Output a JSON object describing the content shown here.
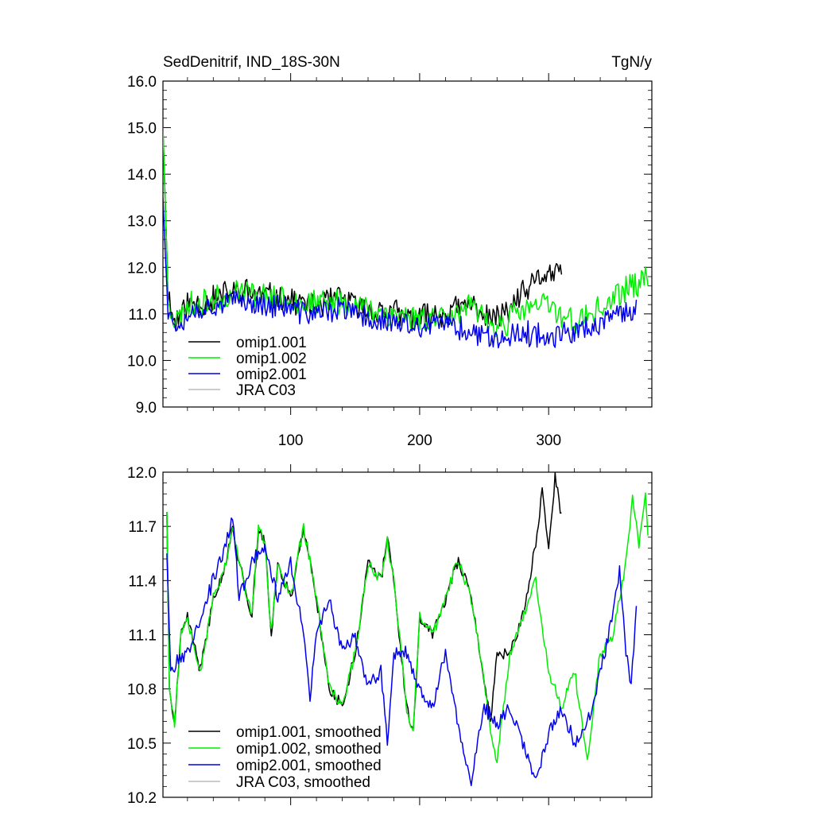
{
  "chart_data": [
    {
      "type": "line",
      "title": "SedDenitrif, IND_18S-30N",
      "units": "TgN/y",
      "xlim": [
        1,
        380
      ],
      "ylim": [
        9.0,
        16.0
      ],
      "xticks": [
        100,
        200,
        300
      ],
      "xtick_labels": [
        "100",
        "200",
        "300"
      ],
      "yticks": [
        9,
        10,
        11,
        12,
        13,
        14,
        15,
        16
      ],
      "ytick_labels": [
        "9.0",
        "10.0",
        "11.0",
        "12.0",
        "13.0",
        "14.0",
        "15.0",
        "16.0"
      ],
      "legend_position": "bottom-left",
      "series": [
        {
          "name": "omip1.001",
          "color": "#000000",
          "x_start": 1,
          "x_end": 310,
          "anchors": [
            [
              1,
              15.0
            ],
            [
              3,
              13.2
            ],
            [
              5,
              11.4
            ],
            [
              10,
              10.8
            ],
            [
              20,
              11.2
            ],
            [
              40,
              11.3
            ],
            [
              60,
              11.5
            ],
            [
              80,
              11.4
            ],
            [
              100,
              11.3
            ],
            [
              120,
              11.2
            ],
            [
              140,
              11.3
            ],
            [
              160,
              11.1
            ],
            [
              180,
              11.0
            ],
            [
              200,
              10.9
            ],
            [
              220,
              11.0
            ],
            [
              240,
              11.2
            ],
            [
              250,
              11.0
            ],
            [
              260,
              10.9
            ],
            [
              270,
              11.1
            ],
            [
              280,
              11.4
            ],
            [
              290,
              11.7
            ],
            [
              300,
              11.9
            ],
            [
              310,
              11.8
            ]
          ],
          "noise": 0.45,
          "seed": 11
        },
        {
          "name": "omip1.002",
          "color": "#00ee00",
          "x_start": 1,
          "x_end": 377,
          "anchors": [
            [
              1,
              15.0
            ],
            [
              3,
              13.2
            ],
            [
              5,
              11.4
            ],
            [
              10,
              10.8
            ],
            [
              20,
              11.2
            ],
            [
              40,
              11.3
            ],
            [
              60,
              11.5
            ],
            [
              80,
              11.4
            ],
            [
              100,
              11.3
            ],
            [
              120,
              11.2
            ],
            [
              140,
              11.3
            ],
            [
              160,
              11.1
            ],
            [
              180,
              11.0
            ],
            [
              200,
              10.9
            ],
            [
              220,
              11.0
            ],
            [
              240,
              11.1
            ],
            [
              260,
              10.7
            ],
            [
              280,
              11.1
            ],
            [
              300,
              11.2
            ],
            [
              320,
              10.8
            ],
            [
              340,
              11.1
            ],
            [
              360,
              11.5
            ],
            [
              377,
              11.8
            ]
          ],
          "noise": 0.45,
          "seed": 23
        },
        {
          "name": "omip2.001",
          "color": "#0000ee",
          "x_start": 1,
          "x_end": 368,
          "anchors": [
            [
              1,
              13.5
            ],
            [
              3,
              12.2
            ],
            [
              5,
              11.0
            ],
            [
              10,
              10.8
            ],
            [
              20,
              11.0
            ],
            [
              40,
              11.2
            ],
            [
              60,
              11.3
            ],
            [
              80,
              11.2
            ],
            [
              100,
              11.1
            ],
            [
              120,
              11.0
            ],
            [
              140,
              11.1
            ],
            [
              160,
              10.9
            ],
            [
              180,
              10.8
            ],
            [
              200,
              10.7
            ],
            [
              220,
              10.8
            ],
            [
              240,
              10.6
            ],
            [
              260,
              10.5
            ],
            [
              280,
              10.6
            ],
            [
              300,
              10.5
            ],
            [
              320,
              10.6
            ],
            [
              340,
              10.8
            ],
            [
              368,
              11.1
            ]
          ],
          "noise": 0.4,
          "seed": 37
        },
        {
          "name": "JRA C03",
          "color": "#bbbbbb",
          "x_start": null,
          "x_end": null,
          "anchors": [],
          "noise": 0,
          "seed": 0
        }
      ]
    },
    {
      "type": "line",
      "title": "",
      "units": "",
      "xlim": [
        1,
        380
      ],
      "ylim": [
        10.2,
        12.0
      ],
      "xticks": [
        100,
        200,
        300
      ],
      "xtick_labels": [
        "",
        "",
        ""
      ],
      "yticks": [
        10.2,
        10.5,
        10.8,
        11.1,
        11.4,
        11.7,
        12.0
      ],
      "ytick_labels": [
        "10.2",
        "10.5",
        "10.8",
        "11.1",
        "11.4",
        "11.7",
        "12.0"
      ],
      "legend_position": "bottom-left",
      "series": [
        {
          "name": "omip1.001, smoothed",
          "color": "#000000",
          "x_start": 4,
          "x_end": 310,
          "anchors": [
            [
              4,
              11.78
            ],
            [
              6,
              10.8
            ],
            [
              10,
              10.6
            ],
            [
              15,
              11.1
            ],
            [
              20,
              11.2
            ],
            [
              30,
              10.9
            ],
            [
              40,
              11.3
            ],
            [
              50,
              11.5
            ],
            [
              55,
              11.7
            ],
            [
              60,
              11.5
            ],
            [
              70,
              11.2
            ],
            [
              75,
              11.7
            ],
            [
              80,
              11.6
            ],
            [
              85,
              11.1
            ],
            [
              90,
              11.5
            ],
            [
              100,
              11.3
            ],
            [
              110,
              11.7
            ],
            [
              120,
              11.3
            ],
            [
              130,
              10.8
            ],
            [
              140,
              10.7
            ],
            [
              150,
              11.0
            ],
            [
              160,
              11.5
            ],
            [
              170,
              11.4
            ],
            [
              175,
              11.63
            ],
            [
              180,
              11.4
            ],
            [
              190,
              10.7
            ],
            [
              195,
              10.55
            ],
            [
              200,
              11.2
            ],
            [
              210,
              11.1
            ],
            [
              220,
              11.3
            ],
            [
              230,
              11.52
            ],
            [
              240,
              11.3
            ],
            [
              250,
              10.85
            ],
            [
              255,
              10.6
            ],
            [
              260,
              11.0
            ],
            [
              270,
              11.0
            ],
            [
              280,
              11.2
            ],
            [
              290,
              11.6
            ],
            [
              295,
              11.9
            ],
            [
              300,
              11.55
            ],
            [
              305,
              11.98
            ],
            [
              310,
              11.75
            ]
          ],
          "noise": 0.05,
          "seed": 41
        },
        {
          "name": "omip1.002, smoothed",
          "color": "#00ee00",
          "x_start": 4,
          "x_end": 377,
          "anchors": [
            [
              4,
              11.78
            ],
            [
              6,
              10.8
            ],
            [
              10,
              10.6
            ],
            [
              15,
              11.1
            ],
            [
              20,
              11.2
            ],
            [
              30,
              10.9
            ],
            [
              40,
              11.3
            ],
            [
              50,
              11.5
            ],
            [
              55,
              11.7
            ],
            [
              60,
              11.5
            ],
            [
              70,
              11.2
            ],
            [
              75,
              11.7
            ],
            [
              80,
              11.6
            ],
            [
              85,
              11.1
            ],
            [
              90,
              11.5
            ],
            [
              100,
              11.3
            ],
            [
              110,
              11.7
            ],
            [
              120,
              11.3
            ],
            [
              130,
              10.8
            ],
            [
              140,
              10.7
            ],
            [
              150,
              11.0
            ],
            [
              160,
              11.5
            ],
            [
              170,
              11.4
            ],
            [
              175,
              11.63
            ],
            [
              180,
              11.4
            ],
            [
              190,
              10.7
            ],
            [
              195,
              10.55
            ],
            [
              200,
              11.2
            ],
            [
              210,
              11.1
            ],
            [
              220,
              11.3
            ],
            [
              230,
              11.52
            ],
            [
              240,
              11.3
            ],
            [
              250,
              10.85
            ],
            [
              255,
              10.55
            ],
            [
              260,
              10.4
            ],
            [
              270,
              11.0
            ],
            [
              280,
              11.2
            ],
            [
              290,
              11.4
            ],
            [
              300,
              10.9
            ],
            [
              310,
              10.7
            ],
            [
              320,
              10.9
            ],
            [
              330,
              10.4
            ],
            [
              340,
              11.0
            ],
            [
              350,
              11.1
            ],
            [
              360,
              11.5
            ],
            [
              365,
              11.85
            ],
            [
              370,
              11.6
            ],
            [
              375,
              11.9
            ],
            [
              377,
              11.65
            ]
          ],
          "noise": 0.05,
          "seed": 53
        },
        {
          "name": "omip2.001, smoothed",
          "color": "#0000ee",
          "x_start": 4,
          "x_end": 368,
          "anchors": [
            [
              4,
              11.55
            ],
            [
              7,
              10.9
            ],
            [
              12,
              10.95
            ],
            [
              20,
              11.0
            ],
            [
              30,
              11.2
            ],
            [
              40,
              11.4
            ],
            [
              50,
              11.6
            ],
            [
              55,
              11.76
            ],
            [
              60,
              11.3
            ],
            [
              70,
              11.5
            ],
            [
              80,
              11.6
            ],
            [
              90,
              11.3
            ],
            [
              100,
              11.5
            ],
            [
              110,
              11.1
            ],
            [
              115,
              10.75
            ],
            [
              120,
              11.1
            ],
            [
              130,
              11.3
            ],
            [
              140,
              11.0
            ],
            [
              150,
              11.1
            ],
            [
              160,
              10.8
            ],
            [
              170,
              10.9
            ],
            [
              175,
              10.5
            ],
            [
              180,
              11.0
            ],
            [
              190,
              11.0
            ],
            [
              200,
              10.8
            ],
            [
              210,
              10.7
            ],
            [
              220,
              11.0
            ],
            [
              230,
              10.6
            ],
            [
              240,
              10.28
            ],
            [
              250,
              10.7
            ],
            [
              260,
              10.6
            ],
            [
              270,
              10.7
            ],
            [
              280,
              10.5
            ],
            [
              290,
              10.3
            ],
            [
              300,
              10.55
            ],
            [
              310,
              10.7
            ],
            [
              320,
              10.5
            ],
            [
              330,
              10.6
            ],
            [
              340,
              10.9
            ],
            [
              350,
              11.2
            ],
            [
              355,
              11.45
            ],
            [
              360,
              11.0
            ],
            [
              364,
              10.82
            ],
            [
              368,
              11.22
            ]
          ],
          "noise": 0.06,
          "seed": 67
        },
        {
          "name": "JRA C03, smoothed",
          "color": "#bbbbbb",
          "x_start": null,
          "x_end": null,
          "anchors": [],
          "noise": 0,
          "seed": 0
        }
      ]
    }
  ]
}
